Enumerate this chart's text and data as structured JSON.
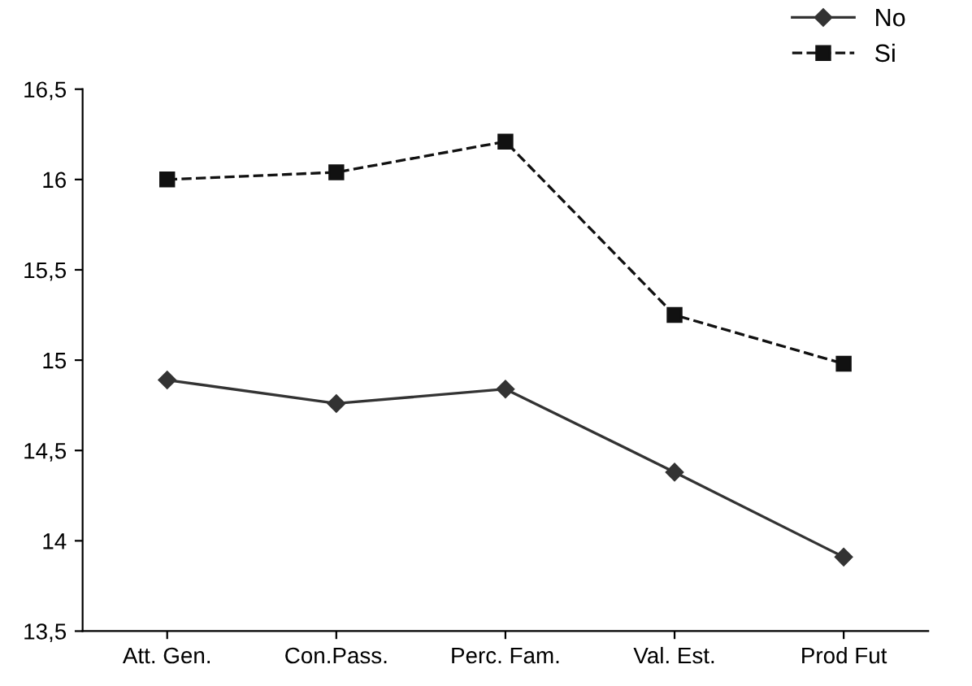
{
  "chart_data": {
    "type": "line",
    "categories": [
      "Att. Gen.",
      "Con.Pass.",
      "Perc. Fam.",
      "Val. Est.",
      "Prod Fut"
    ],
    "series": [
      {
        "name": "No",
        "color": "#333333",
        "values": [
          14.89,
          14.76,
          14.84,
          14.38,
          13.91
        ],
        "marker": "diamond",
        "line_style": "solid"
      },
      {
        "name": "Si",
        "color": "#111111",
        "values": [
          16.0,
          16.04,
          16.21,
          15.25,
          14.98
        ],
        "marker": "square",
        "line_style": "dashed"
      }
    ],
    "ylim": [
      13.5,
      16.5
    ],
    "yticks": [
      {
        "value": 13.5,
        "label": "13,5"
      },
      {
        "value": 14,
        "label": "14"
      },
      {
        "value": 14.5,
        "label": "14,5"
      },
      {
        "value": 15,
        "label": "15"
      },
      {
        "value": 15.5,
        "label": "15,5"
      },
      {
        "value": 16,
        "label": "16"
      },
      {
        "value": 16.5,
        "label": "16,5"
      }
    ],
    "grid": false,
    "legend": "top right"
  }
}
